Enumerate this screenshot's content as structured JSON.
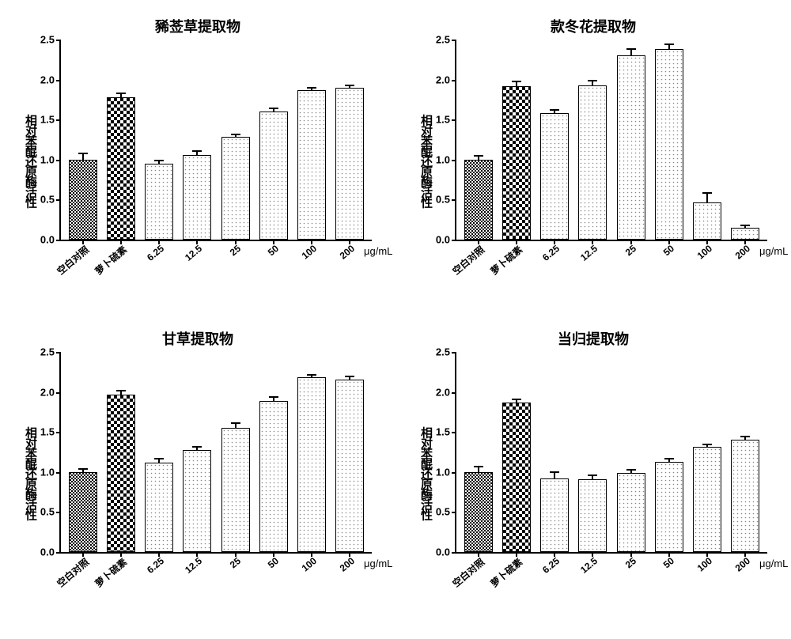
{
  "unit_label": "μg/mL",
  "ylabel": "相对苯醌还原酶活性",
  "ylim": [
    0,
    2.5
  ],
  "yticks": [
    0.0,
    0.5,
    1.0,
    1.5,
    2.0,
    2.5
  ],
  "categories": [
    "空白对照",
    "萝卜硫素",
    "6.25",
    "12.5",
    "25",
    "50",
    "100",
    "200"
  ],
  "title_fontsize": 18,
  "label_fontsize": 13,
  "axis_color": "#000000",
  "background_color": "#ffffff",
  "patterns": {
    "blank": "checker-fine",
    "sulforaphane": "checker-coarse",
    "dose": "dots"
  },
  "bar_width": 0.7,
  "panels": [
    {
      "id": "xixian",
      "title": "豨莶草提取物",
      "values": [
        1.0,
        1.78,
        0.95,
        1.06,
        1.28,
        1.6,
        1.87,
        1.9
      ],
      "errors": [
        0.08,
        0.05,
        0.04,
        0.05,
        0.03,
        0.04,
        0.03,
        0.03
      ]
    },
    {
      "id": "kuandong",
      "title": "款冬花提取物",
      "values": [
        1.0,
        1.92,
        1.58,
        1.93,
        2.3,
        2.38,
        0.46,
        0.15
      ],
      "errors": [
        0.05,
        0.06,
        0.04,
        0.06,
        0.08,
        0.06,
        0.12,
        0.03
      ]
    },
    {
      "id": "gancao",
      "title": "甘草提取物",
      "values": [
        1.0,
        1.97,
        1.12,
        1.27,
        1.55,
        1.89,
        2.18,
        2.15
      ],
      "errors": [
        0.04,
        0.05,
        0.05,
        0.04,
        0.06,
        0.05,
        0.03,
        0.04
      ]
    },
    {
      "id": "danggui",
      "title": "当归提取物",
      "values": [
        1.0,
        1.87,
        0.92,
        0.91,
        0.99,
        1.13,
        1.31,
        1.4
      ],
      "errors": [
        0.07,
        0.04,
        0.08,
        0.05,
        0.04,
        0.04,
        0.03,
        0.04
      ]
    }
  ]
}
